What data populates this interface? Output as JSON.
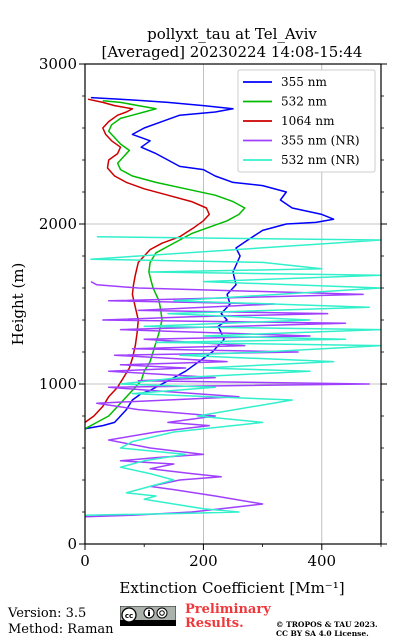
{
  "chart_data": {
    "type": "line",
    "title": "pollyxt_tau at Tel_Aviv",
    "subtitle": "[Averaged] 20230224 14:08-15:44",
    "xlabel": "Extinction Coefficient [Mm⁻¹]",
    "ylabel": "Height (m)",
    "xlim": [
      0,
      500
    ],
    "ylim": [
      0,
      3000
    ],
    "xticks": [
      0,
      200,
      400
    ],
    "yticks": [
      0,
      1000,
      2000,
      3000
    ],
    "grid": true,
    "legend_position": "top-right",
    "series": [
      {
        "name": "355 nm",
        "color": "#0000ff",
        "points": [
          [
            0,
            720
          ],
          [
            30,
            740
          ],
          [
            50,
            760
          ],
          [
            60,
            800
          ],
          [
            70,
            840
          ],
          [
            80,
            900
          ],
          [
            95,
            940
          ],
          [
            110,
            960
          ],
          [
            130,
            1000
          ],
          [
            150,
            1040
          ],
          [
            170,
            1080
          ],
          [
            185,
            1120
          ],
          [
            200,
            1160
          ],
          [
            215,
            1200
          ],
          [
            225,
            1240
          ],
          [
            235,
            1280
          ],
          [
            230,
            1320
          ],
          [
            225,
            1360
          ],
          [
            240,
            1400
          ],
          [
            230,
            1440
          ],
          [
            245,
            1500
          ],
          [
            240,
            1560
          ],
          [
            255,
            1620
          ],
          [
            250,
            1700
          ],
          [
            262,
            1800
          ],
          [
            255,
            1850
          ],
          [
            275,
            1900
          ],
          [
            300,
            1960
          ],
          [
            340,
            2000
          ],
          [
            390,
            2010
          ],
          [
            420,
            2030
          ],
          [
            400,
            2060
          ],
          [
            350,
            2100
          ],
          [
            330,
            2150
          ],
          [
            340,
            2200
          ],
          [
            300,
            2240
          ],
          [
            250,
            2260
          ],
          [
            220,
            2300
          ],
          [
            200,
            2340
          ],
          [
            160,
            2360
          ],
          [
            140,
            2400
          ],
          [
            120,
            2440
          ],
          [
            95,
            2480
          ],
          [
            110,
            2520
          ],
          [
            80,
            2560
          ],
          [
            100,
            2600
          ],
          [
            130,
            2640
          ],
          [
            160,
            2680
          ],
          [
            220,
            2700
          ],
          [
            250,
            2720
          ],
          [
            200,
            2740
          ],
          [
            140,
            2760
          ],
          [
            100,
            2770
          ],
          [
            60,
            2780
          ],
          [
            10,
            2790
          ]
        ]
      },
      {
        "name": "532 nm",
        "color": "#00bb00",
        "points": [
          [
            0,
            720
          ],
          [
            20,
            760
          ],
          [
            40,
            800
          ],
          [
            55,
            860
          ],
          [
            65,
            900
          ],
          [
            75,
            940
          ],
          [
            85,
            980
          ],
          [
            95,
            1020
          ],
          [
            100,
            1080
          ],
          [
            110,
            1140
          ],
          [
            115,
            1200
          ],
          [
            120,
            1260
          ],
          [
            125,
            1320
          ],
          [
            130,
            1400
          ],
          [
            128,
            1460
          ],
          [
            125,
            1520
          ],
          [
            120,
            1560
          ],
          [
            115,
            1600
          ],
          [
            112,
            1640
          ],
          [
            108,
            1700
          ],
          [
            110,
            1760
          ],
          [
            120,
            1820
          ],
          [
            140,
            1860
          ],
          [
            160,
            1900
          ],
          [
            180,
            1940
          ],
          [
            210,
            1980
          ],
          [
            240,
            2020
          ],
          [
            260,
            2060
          ],
          [
            270,
            2100
          ],
          [
            250,
            2140
          ],
          [
            220,
            2180
          ],
          [
            170,
            2220
          ],
          [
            120,
            2260
          ],
          [
            80,
            2300
          ],
          [
            60,
            2340
          ],
          [
            55,
            2380
          ],
          [
            65,
            2420
          ],
          [
            75,
            2460
          ],
          [
            60,
            2500
          ],
          [
            50,
            2540
          ],
          [
            40,
            2580
          ],
          [
            45,
            2620
          ],
          [
            60,
            2660
          ],
          [
            80,
            2680
          ],
          [
            100,
            2700
          ],
          [
            120,
            2720
          ],
          [
            90,
            2740
          ],
          [
            60,
            2760
          ],
          [
            30,
            2770
          ]
        ]
      },
      {
        "name": "1064 nm",
        "color": "#cc0000",
        "points": [
          [
            0,
            760
          ],
          [
            15,
            800
          ],
          [
            30,
            860
          ],
          [
            40,
            920
          ],
          [
            55,
            980
          ],
          [
            65,
            1040
          ],
          [
            75,
            1100
          ],
          [
            80,
            1160
          ],
          [
            85,
            1240
          ],
          [
            88,
            1320
          ],
          [
            90,
            1400
          ],
          [
            85,
            1480
          ],
          [
            80,
            1560
          ],
          [
            82,
            1620
          ],
          [
            85,
            1680
          ],
          [
            90,
            1760
          ],
          [
            100,
            1800
          ],
          [
            110,
            1840
          ],
          [
            130,
            1880
          ],
          [
            160,
            1920
          ],
          [
            185,
            1980
          ],
          [
            200,
            2020
          ],
          [
            210,
            2060
          ],
          [
            205,
            2100
          ],
          [
            180,
            2140
          ],
          [
            140,
            2180
          ],
          [
            100,
            2220
          ],
          [
            70,
            2260
          ],
          [
            50,
            2300
          ],
          [
            38,
            2350
          ],
          [
            40,
            2400
          ],
          [
            55,
            2440
          ],
          [
            60,
            2480
          ],
          [
            45,
            2520
          ],
          [
            35,
            2560
          ],
          [
            30,
            2600
          ],
          [
            40,
            2640
          ],
          [
            55,
            2680
          ],
          [
            70,
            2700
          ],
          [
            80,
            2720
          ],
          [
            50,
            2740
          ],
          [
            30,
            2760
          ],
          [
            5,
            2780
          ]
        ]
      },
      {
        "name": "355 nm (NR)",
        "color": "#a040ff",
        "points": [
          [
            0,
            170
          ],
          [
            80,
            180
          ],
          [
            180,
            200
          ],
          [
            230,
            220
          ],
          [
            300,
            250
          ],
          [
            220,
            300
          ],
          [
            150,
            340
          ],
          [
            110,
            360
          ],
          [
            160,
            400
          ],
          [
            230,
            420
          ],
          [
            180,
            440
          ],
          [
            110,
            470
          ],
          [
            150,
            500
          ],
          [
            60,
            520
          ],
          [
            120,
            540
          ],
          [
            200,
            560
          ],
          [
            110,
            600
          ],
          [
            40,
            650
          ],
          [
            120,
            700
          ],
          [
            210,
            740
          ],
          [
            140,
            760
          ],
          [
            220,
            800
          ],
          [
            90,
            840
          ],
          [
            20,
            880
          ],
          [
            260,
            920
          ],
          [
            110,
            960
          ],
          [
            40,
            980
          ],
          [
            480,
            1000
          ],
          [
            90,
            1020
          ],
          [
            220,
            1040
          ],
          [
            40,
            1080
          ],
          [
            170,
            1100
          ],
          [
            60,
            1120
          ],
          [
            240,
            1140
          ],
          [
            50,
            1180
          ],
          [
            360,
            1200
          ],
          [
            80,
            1220
          ],
          [
            270,
            1240
          ],
          [
            100,
            1280
          ],
          [
            380,
            1300
          ],
          [
            60,
            1340
          ],
          [
            440,
            1380
          ],
          [
            30,
            1400
          ],
          [
            180,
            1420
          ],
          [
            410,
            1440
          ],
          [
            90,
            1460
          ],
          [
            320,
            1500
          ],
          [
            40,
            1520
          ],
          [
            470,
            1560
          ],
          [
            90,
            1600
          ],
          [
            20,
            1620
          ],
          [
            10,
            1640
          ]
        ]
      },
      {
        "name": "532 nm (NR)",
        "color": "#33f0cc",
        "points": [
          [
            0,
            180
          ],
          [
            150,
            190
          ],
          [
            260,
            200
          ],
          [
            200,
            220
          ],
          [
            150,
            250
          ],
          [
            100,
            280
          ],
          [
            120,
            300
          ],
          [
            70,
            320
          ],
          [
            110,
            360
          ],
          [
            150,
            400
          ],
          [
            110,
            440
          ],
          [
            60,
            480
          ],
          [
            100,
            520
          ],
          [
            170,
            560
          ],
          [
            60,
            600
          ],
          [
            80,
            640
          ],
          [
            150,
            700
          ],
          [
            300,
            760
          ],
          [
            190,
            800
          ],
          [
            350,
            900
          ],
          [
            80,
            940
          ],
          [
            220,
            980
          ],
          [
            60,
            1000
          ],
          [
            160,
            1040
          ],
          [
            380,
            1080
          ],
          [
            200,
            1100
          ],
          [
            420,
            1140
          ],
          [
            160,
            1180
          ],
          [
            300,
            1200
          ],
          [
            500,
            1240
          ],
          [
            120,
            1260
          ],
          [
            440,
            1280
          ],
          [
            200,
            1300
          ],
          [
            500,
            1340
          ],
          [
            100,
            1360
          ],
          [
            380,
            1400
          ],
          [
            140,
            1440
          ],
          [
            480,
            1480
          ],
          [
            150,
            1520
          ],
          [
            500,
            1600
          ],
          [
            200,
            1640
          ],
          [
            500,
            1680
          ],
          [
            110,
            1700
          ],
          [
            400,
            1720
          ],
          [
            300,
            1760
          ],
          [
            10,
            1780
          ],
          [
            500,
            1900
          ],
          [
            20,
            1920
          ]
        ]
      }
    ]
  },
  "footer": {
    "version": "Version: 3.5",
    "method": "Method: Raman",
    "preliminary_line1": "Preliminary",
    "preliminary_line2": "Results.",
    "copyright_line1": "© TROPOS & TAU 2023.",
    "copyright_line2": "CC BY SA 4.0 License."
  },
  "colors": {
    "preliminary": "#f0383c",
    "grid": "#b0b0b0"
  },
  "icons": [
    "cc-by-sa-badge"
  ]
}
